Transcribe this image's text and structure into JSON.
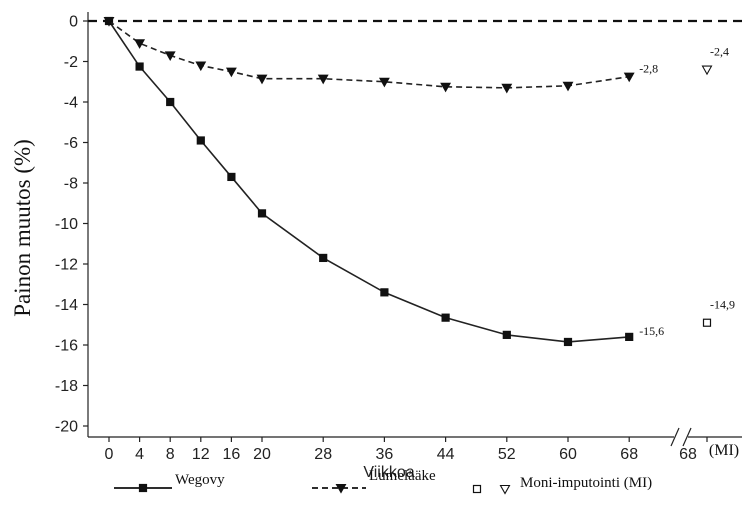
{
  "chart_data": {
    "type": "line",
    "xlabel": "Viikkoa",
    "ylabel": "Painon muutos (%)",
    "ylim": [
      -20,
      0
    ],
    "yticks": [
      0,
      -2,
      -4,
      -6,
      -8,
      -10,
      -12,
      -14,
      -16,
      -18,
      -20
    ],
    "xticks": [
      "0",
      "4",
      "8",
      "12",
      "16",
      "20",
      "28",
      "36",
      "44",
      "52",
      "60",
      "68"
    ],
    "xticks_after_break": [
      "68",
      "(MI)"
    ],
    "axis_break": true,
    "grid": false,
    "legend_position": "bottom",
    "series": [
      {
        "name": "Wegovy",
        "style": "solid",
        "marker": "filled-square",
        "color": "#222222",
        "x": [
          0,
          4,
          8,
          12,
          16,
          20,
          28,
          36,
          44,
          52,
          60,
          68
        ],
        "y": [
          0,
          -2.25,
          -4.0,
          -5.9,
          -7.7,
          -9.5,
          -11.7,
          -13.4,
          -14.65,
          -15.5,
          -15.85,
          -15.6
        ],
        "end_label": "-15,6"
      },
      {
        "name": "Lumelääke",
        "style": "dashed",
        "marker": "filled-triangle-down",
        "color": "#222222",
        "x": [
          0,
          4,
          8,
          12,
          16,
          20,
          28,
          36,
          44,
          52,
          60,
          68
        ],
        "y": [
          0,
          -1.1,
          -1.7,
          -2.2,
          -2.5,
          -2.85,
          -2.85,
          -3.0,
          -3.25,
          -3.3,
          -3.2,
          -2.75
        ],
        "end_label": "-2,8"
      }
    ],
    "mi_points": [
      {
        "series": "Wegovy",
        "marker": "open-square",
        "value": -14.9,
        "label": "-14,9"
      },
      {
        "series": "Lumelääke",
        "marker": "open-triangle-down",
        "value": -2.4,
        "label": "-2,4"
      }
    ],
    "reference_line": {
      "y": 0,
      "style": "dashed"
    },
    "legend": [
      {
        "label": "Wegovy",
        "style": "solid",
        "marker": "filled-square"
      },
      {
        "label": "Lumelääke",
        "style": "dashed",
        "marker": "filled-triangle-down"
      },
      {
        "label": "Moni-imputointi (MI)",
        "style": "none",
        "marker": "open-square+open-triangle"
      }
    ]
  }
}
